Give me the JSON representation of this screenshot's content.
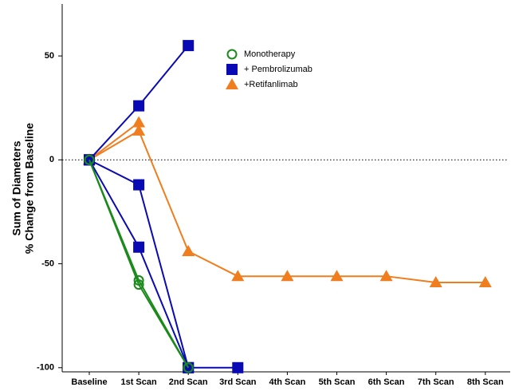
{
  "chart_data": {
    "type": "spider",
    "y_label_lines": [
      "Sum of Diameters",
      "% Change from Baseline"
    ],
    "categories": [
      "Baseline",
      "1st Scan",
      "2nd Scan",
      "3rd Scan",
      "4th Scan",
      "5th Scan",
      "6th Scan",
      "7th Scan",
      "8th Scan"
    ],
    "ylim": [
      -102,
      75
    ],
    "yticks": [
      -100,
      -50,
      0,
      50
    ],
    "reference_line": 0,
    "series": [
      {
        "name": "+Retifanlimab",
        "color": "#f07d1e",
        "marker": "triangle",
        "lines": [
          [
            0,
            18,
            null,
            null,
            null,
            null,
            null,
            null,
            null
          ],
          [
            0,
            14,
            -44,
            -56,
            -56,
            -56,
            -56,
            -59,
            -59
          ]
        ]
      },
      {
        "name": "+ Pembrolizumab",
        "color": "#0a0ab4",
        "marker": "square",
        "lines": [
          [
            0,
            26,
            55,
            null,
            null,
            null,
            null,
            null,
            null
          ],
          [
            0,
            -12,
            -100,
            -100,
            null,
            null,
            null,
            null,
            null
          ],
          [
            0,
            -42,
            -100,
            null,
            null,
            null,
            null,
            null,
            null
          ]
        ]
      },
      {
        "name": "Monotherapy",
        "color": "#1a8a1a",
        "marker": "circle",
        "lines": [
          [
            0,
            -58,
            -100,
            null,
            null,
            null,
            null,
            null,
            null
          ],
          [
            0,
            -60,
            -100,
            null,
            null,
            null,
            null,
            null,
            null
          ]
        ]
      }
    ],
    "legend_order": [
      2,
      1,
      0
    ]
  }
}
